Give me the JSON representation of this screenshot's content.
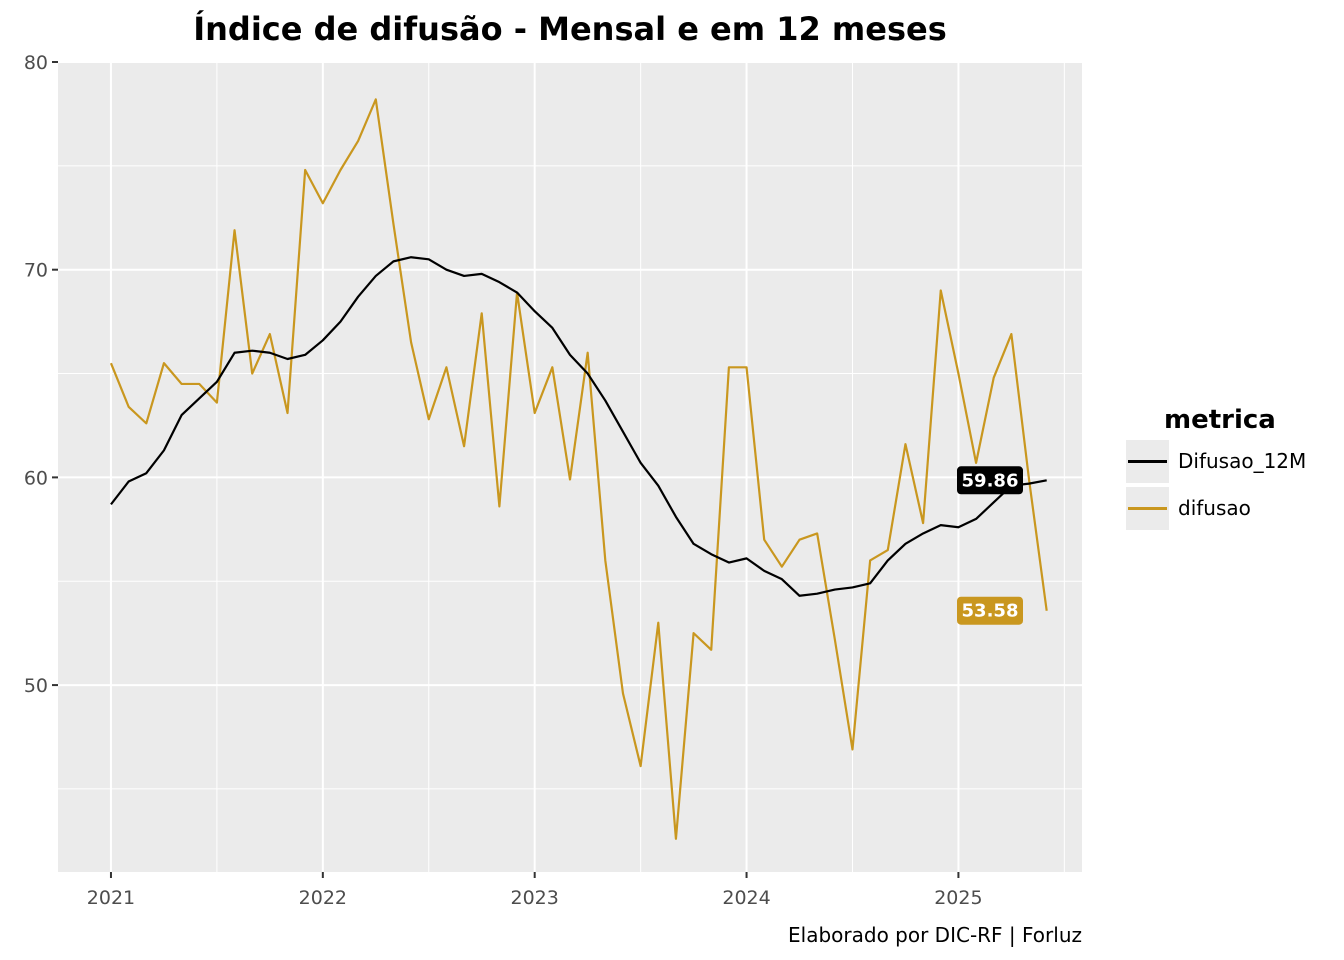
{
  "chart_data": {
    "type": "line",
    "title": "Índice de difusão - Mensal e em 12 meses",
    "caption": "Elaborado por DIC-RF | Forluz",
    "xlabel": "",
    "ylabel": "",
    "ylim": [
      41,
      80
    ],
    "y_ticks": [
      50,
      60,
      70,
      80
    ],
    "x_ticks": [
      "2021",
      "2022",
      "2023",
      "2024",
      "2025"
    ],
    "x_range": [
      "2020-10",
      "2025-08"
    ],
    "grid": true,
    "legend": {
      "title": "metrica",
      "position": "right"
    },
    "x": [
      "2021-01",
      "2021-02",
      "2021-03",
      "2021-04",
      "2021-05",
      "2021-06",
      "2021-07",
      "2021-08",
      "2021-09",
      "2021-10",
      "2021-11",
      "2021-12",
      "2022-01",
      "2022-02",
      "2022-03",
      "2022-04",
      "2022-05",
      "2022-06",
      "2022-07",
      "2022-08",
      "2022-09",
      "2022-10",
      "2022-11",
      "2022-12",
      "2023-01",
      "2023-02",
      "2023-03",
      "2023-04",
      "2023-05",
      "2023-06",
      "2023-07",
      "2023-08",
      "2023-09",
      "2023-10",
      "2023-11",
      "2023-12",
      "2024-01",
      "2024-02",
      "2024-03",
      "2024-04",
      "2024-05",
      "2024-06",
      "2024-07",
      "2024-08",
      "2024-09",
      "2024-10",
      "2024-11",
      "2024-12",
      "2025-01",
      "2025-02",
      "2025-03",
      "2025-04",
      "2025-05",
      "2025-06"
    ],
    "series": [
      {
        "name": "Difusao_12M",
        "color": "#000000",
        "end_label": "59.86",
        "values": [
          58.7,
          59.8,
          60.2,
          61.3,
          63.0,
          63.8,
          64.6,
          66.0,
          66.1,
          66.0,
          65.7,
          65.9,
          66.6,
          67.5,
          68.7,
          69.7,
          70.4,
          70.6,
          70.5,
          70.0,
          69.7,
          69.8,
          69.4,
          68.9,
          68.0,
          67.2,
          65.9,
          65.0,
          63.7,
          62.2,
          60.7,
          59.6,
          58.1,
          56.8,
          56.3,
          55.9,
          56.1,
          55.5,
          55.1,
          54.3,
          54.4,
          54.6,
          54.7,
          54.9,
          56.0,
          56.8,
          57.3,
          57.7,
          57.6,
          58.0,
          58.8,
          59.6,
          59.7,
          59.86
        ]
      },
      {
        "name": "difusao",
        "color": "#C9971F",
        "end_label": "53.58",
        "values": [
          65.5,
          63.4,
          62.6,
          65.5,
          64.5,
          64.5,
          63.6,
          71.9,
          65.0,
          66.9,
          63.1,
          74.8,
          73.2,
          74.8,
          76.2,
          78.2,
          72.2,
          66.5,
          62.8,
          65.3,
          61.5,
          67.9,
          58.6,
          68.9,
          63.1,
          65.3,
          59.9,
          66.0,
          56.0,
          49.6,
          46.1,
          53.0,
          42.6,
          52.5,
          51.7,
          65.3,
          65.3,
          57.0,
          55.7,
          57.0,
          57.3,
          52.2,
          46.9,
          56.0,
          56.5,
          61.6,
          57.8,
          69.0,
          65.0,
          60.7,
          64.8,
          66.9,
          59.9,
          53.58
        ]
      }
    ]
  }
}
